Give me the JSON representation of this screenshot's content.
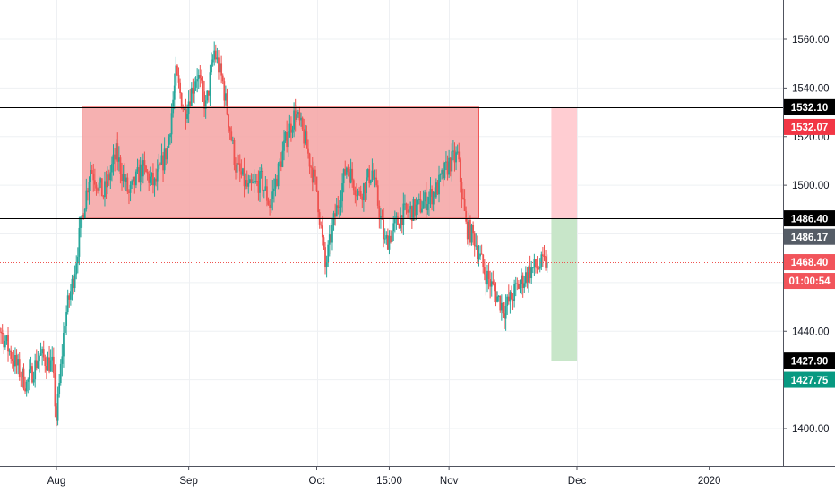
{
  "chart_data": {
    "type": "candlestick",
    "title": "",
    "xlabel": "",
    "ylabel": "",
    "ylim": [
      1380,
      1572
    ],
    "y_ticks": [
      "1560.00",
      "1540.00",
      "1520.00",
      "1500.00",
      "1440.00",
      "1400.00"
    ],
    "x_ticks": [
      "Aug",
      "Sep",
      "Oct",
      "15:00",
      "Nov",
      "Dec",
      "2020"
    ],
    "x_range": [
      "2019-07-15",
      "2020-01-31"
    ],
    "x_tick_dates": [
      "2019-08-01",
      "2019-09-01",
      "2019-10-01",
      "2019-10-18",
      "2019-11-01",
      "2019-12-01",
      "2020-01-01"
    ],
    "grid": true,
    "colors": {
      "up": "#26a69a",
      "down": "#ef5350",
      "zone_fill": "#f5a3a3",
      "zone_border": "#ef5350",
      "stop_fill": "#ffcdd2",
      "target_fill": "#c8e6c9",
      "level_line": "#000000",
      "current_line": "#ef5350"
    },
    "price_series": {
      "name": "",
      "x_start": "2019-07-15",
      "x_end": "2019-11-24",
      "anchors": [
        [
          "2019-07-15",
          1475
        ],
        [
          "2019-07-18",
          1444
        ],
        [
          "2019-07-22",
          1428
        ],
        [
          "2019-07-25",
          1418
        ],
        [
          "2019-07-28",
          1430
        ],
        [
          "2019-07-31",
          1426
        ],
        [
          "2019-08-01",
          1404
        ],
        [
          "2019-08-03",
          1445
        ],
        [
          "2019-08-05",
          1462
        ],
        [
          "2019-08-07",
          1487
        ],
        [
          "2019-08-09",
          1507
        ],
        [
          "2019-08-12",
          1496
        ],
        [
          "2019-08-15",
          1513
        ],
        [
          "2019-08-18",
          1496
        ],
        [
          "2019-08-21",
          1507
        ],
        [
          "2019-08-24",
          1500
        ],
        [
          "2019-08-27",
          1515
        ],
        [
          "2019-08-29",
          1545
        ],
        [
          "2019-08-31",
          1530
        ],
        [
          "2019-09-03",
          1546
        ],
        [
          "2019-09-05",
          1532
        ],
        [
          "2019-09-07",
          1555
        ],
        [
          "2019-09-09",
          1542
        ],
        [
          "2019-09-12",
          1508
        ],
        [
          "2019-09-15",
          1498
        ],
        [
          "2019-09-18",
          1502
        ],
        [
          "2019-09-20",
          1492
        ],
        [
          "2019-09-24",
          1520
        ],
        [
          "2019-09-26",
          1530
        ],
        [
          "2019-09-28",
          1520
        ],
        [
          "2019-10-01",
          1498
        ],
        [
          "2019-10-03",
          1466
        ],
        [
          "2019-10-05",
          1485
        ],
        [
          "2019-10-08",
          1508
        ],
        [
          "2019-10-11",
          1496
        ],
        [
          "2019-10-14",
          1506
        ],
        [
          "2019-10-17",
          1476
        ],
        [
          "2019-10-21",
          1488
        ],
        [
          "2019-10-25",
          1491
        ],
        [
          "2019-10-29",
          1498
        ],
        [
          "2019-11-01",
          1509
        ],
        [
          "2019-11-03",
          1512
        ],
        [
          "2019-11-05",
          1483
        ],
        [
          "2019-11-07",
          1478
        ],
        [
          "2019-11-09",
          1466
        ],
        [
          "2019-11-12",
          1455
        ],
        [
          "2019-11-14",
          1449
        ],
        [
          "2019-11-17",
          1458
        ],
        [
          "2019-11-20",
          1465
        ],
        [
          "2019-11-24",
          1468.4
        ]
      ]
    },
    "zone_rectangle": {
      "x_start": "2019-08-07",
      "x_end": "2019-11-08",
      "y_top": 1532.1,
      "y_bottom": 1486.4
    },
    "stop_zone": {
      "x_start": "2019-11-25",
      "x_end": "2019-12-01",
      "y_top": 1532.07,
      "y_bottom": 1486.17
    },
    "target_zone": {
      "x_start": "2019-11-25",
      "x_end": "2019-12-01",
      "y_top": 1486.17,
      "y_bottom": 1427.75
    },
    "horizontal_lines": [
      1532.1,
      1486.4,
      1427.9
    ],
    "current_price_line": 1468.4
  },
  "price_scale_labels": [
    {
      "name": "level-top-label",
      "text": "1532.10",
      "price": 1532.1,
      "bg": "#000000",
      "fg": "#ffffff"
    },
    {
      "name": "stop-price-label",
      "text": "1532.07",
      "price": 1532.07,
      "bg": "#f23645",
      "fg": "#ffffff",
      "offset": 22
    },
    {
      "name": "level-mid-label",
      "text": "1486.40",
      "price": 1486.4,
      "bg": "#000000",
      "fg": "#ffffff"
    },
    {
      "name": "entry-price-label",
      "text": "1486.17",
      "price": 1486.17,
      "bg": "#555c66",
      "fg": "#ffffff",
      "offset": 20
    },
    {
      "name": "last-price-label",
      "text": "1468.40",
      "price": 1468.4,
      "bg": "#f2545b",
      "fg": "#ffffff"
    },
    {
      "name": "countdown-label",
      "text": "01:00:54",
      "price": 1468.4,
      "bg": "#f2545b",
      "fg": "#ffffff",
      "offset": 21
    },
    {
      "name": "level-low-label",
      "text": "1427.90",
      "price": 1427.9,
      "bg": "#000000",
      "fg": "#ffffff"
    },
    {
      "name": "target-price-label",
      "text": "1427.75",
      "price": 1427.75,
      "bg": "#089981",
      "fg": "#ffffff",
      "offset": 21
    }
  ]
}
